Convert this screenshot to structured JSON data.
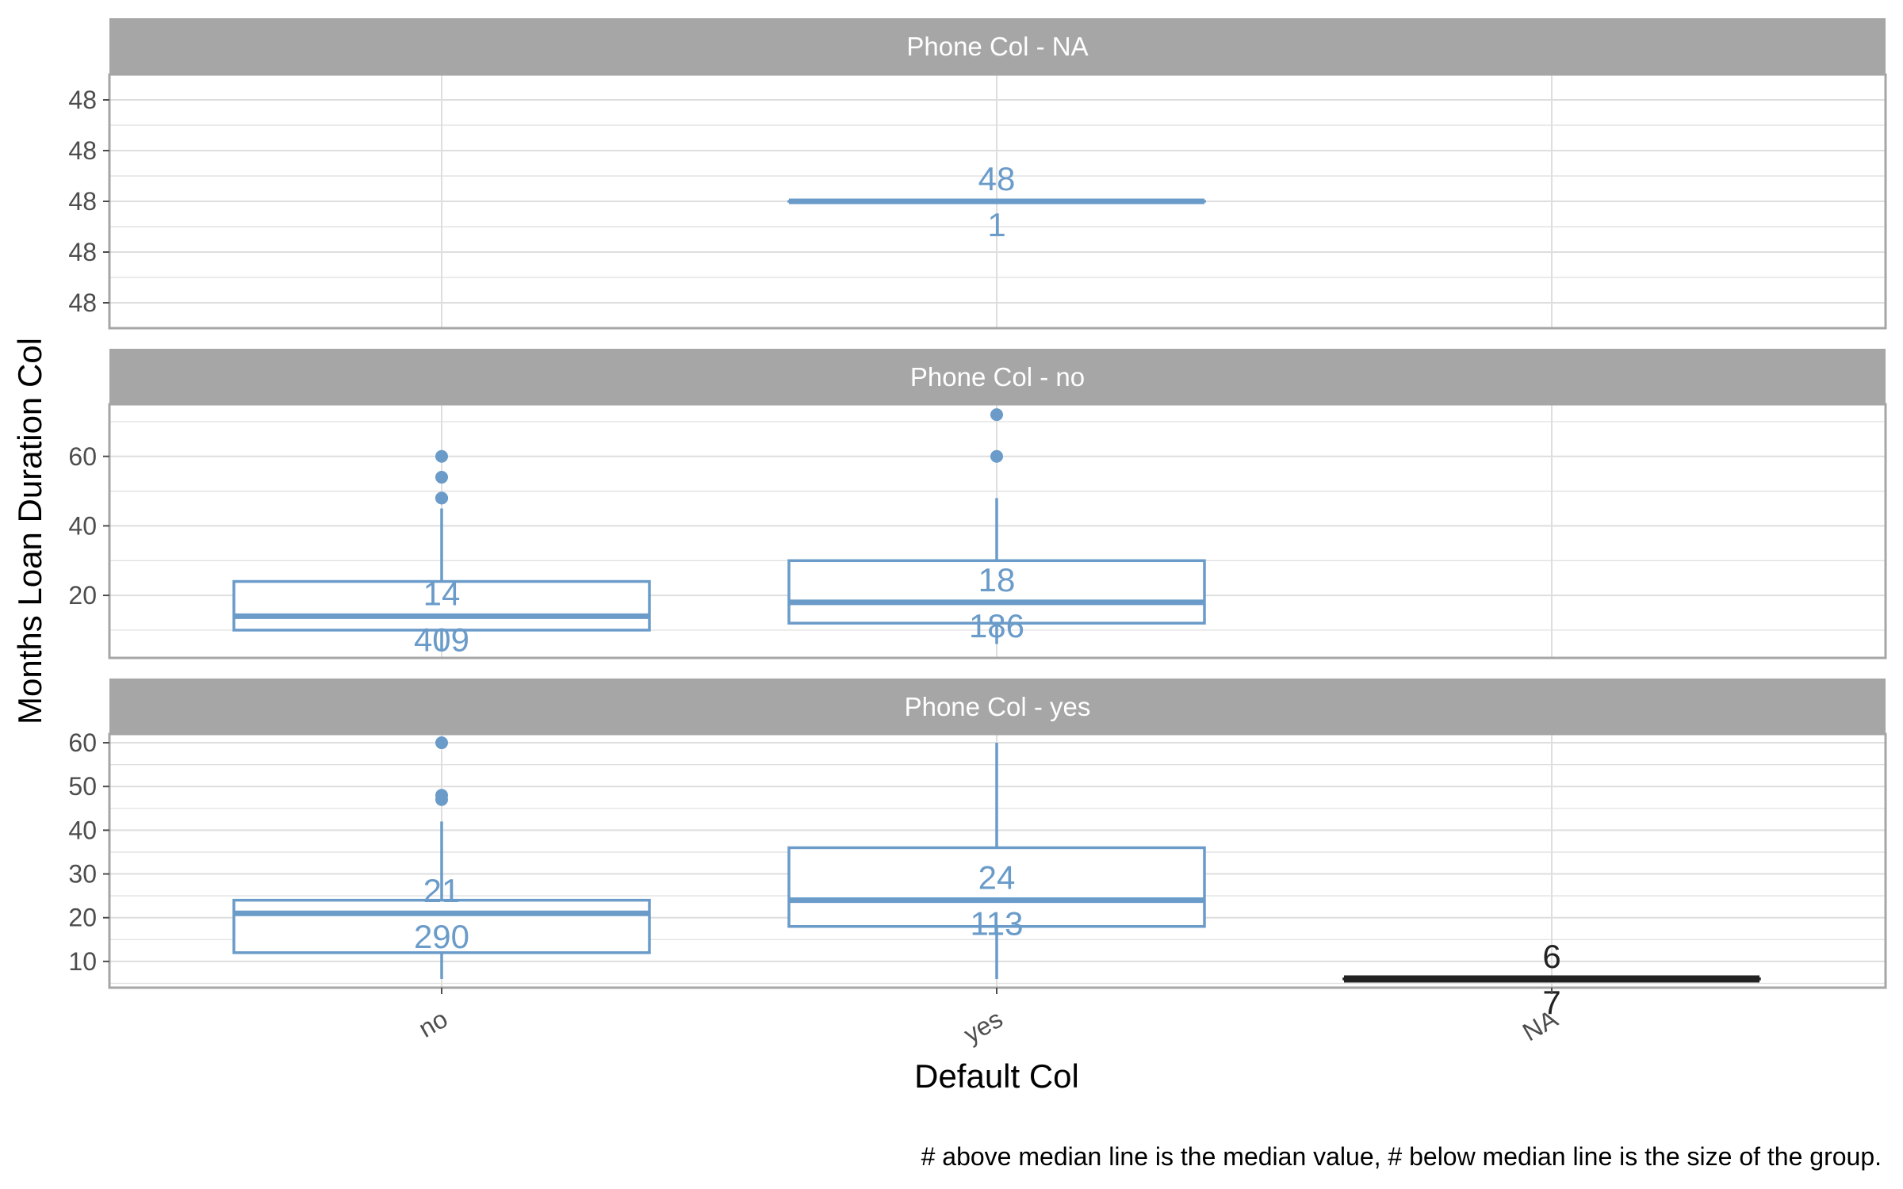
{
  "chart_data": {
    "type": "boxplot",
    "xlabel": "Default Col",
    "ylabel": "Months Loan Duration Col",
    "caption": "# above median line is the median value, # below median line is the size of the group.",
    "categories": [
      "no",
      "yes",
      "NA"
    ],
    "colors": {
      "default": "#6a9bc9",
      "na": "#222222",
      "strip": "#a6a6a6",
      "grid": "#dedede",
      "panel_border": "#a6a6a6"
    },
    "panels": [
      {
        "title": "Phone Col - NA",
        "ylim": [
          47.5,
          48.5
        ],
        "yticks": [
          47.6,
          47.8,
          48.0,
          48.2,
          48.4
        ],
        "yticklabels": [
          "48",
          "48",
          "48",
          "48",
          "48"
        ],
        "boxes": [
          {
            "category": "yes",
            "min": 48,
            "q1": 48,
            "median": 48,
            "q3": 48,
            "max": 48,
            "n": 1,
            "median_label": "48",
            "n_label": "1",
            "outliers": []
          }
        ]
      },
      {
        "title": "Phone Col - no",
        "ylim": [
          2,
          75
        ],
        "yticks": [
          20,
          40,
          60
        ],
        "yticklabels": [
          "20",
          "40",
          "60"
        ],
        "boxes": [
          {
            "category": "no",
            "min": 4,
            "q1": 10,
            "median": 14,
            "q3": 24,
            "max": 45,
            "n": 409,
            "median_label": "14",
            "n_label": "409",
            "outliers": [
              48,
              48,
              54,
              60
            ]
          },
          {
            "category": "yes",
            "min": 6,
            "q1": 12,
            "median": 18,
            "q3": 30,
            "max": 48,
            "n": 186,
            "median_label": "18",
            "n_label": "186",
            "outliers": [
              60,
              72
            ]
          }
        ]
      },
      {
        "title": "Phone Col - yes",
        "ylim": [
          4,
          62
        ],
        "yticks": [
          10,
          20,
          30,
          40,
          50,
          60
        ],
        "yticklabels": [
          "10",
          "20",
          "30",
          "40",
          "50",
          "60"
        ],
        "boxes": [
          {
            "category": "no",
            "min": 6,
            "q1": 12,
            "median": 21,
            "q3": 24,
            "max": 42,
            "n": 290,
            "median_label": "21",
            "n_label": "290",
            "outliers": [
              47,
              48,
              60
            ]
          },
          {
            "category": "yes",
            "min": 6,
            "q1": 18,
            "median": 24,
            "q3": 36,
            "max": 60,
            "n": 113,
            "median_label": "24",
            "n_label": "113",
            "outliers": []
          },
          {
            "category": "NA",
            "min": 6,
            "q1": 6,
            "median": 6,
            "q3": 6,
            "max": 6,
            "n": 7,
            "median_label": "6",
            "n_label": "7",
            "outliers": [],
            "na": true
          }
        ]
      }
    ]
  }
}
